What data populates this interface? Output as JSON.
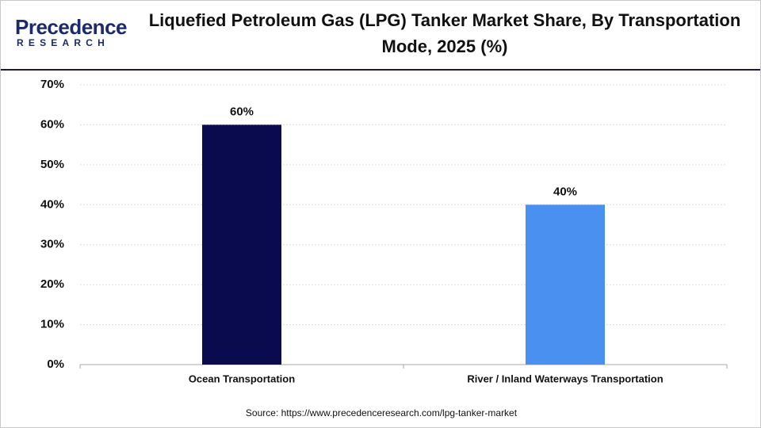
{
  "logo": {
    "name": "Precedence",
    "tagline": "RESEARCH"
  },
  "chart_data": {
    "type": "bar",
    "title": "Liquefied Petroleum Gas (LPG) Tanker Market Share, By Transportation Mode, 2025 (%)",
    "categories": [
      "Ocean Transportation",
      "River / Inland Waterways Transportation"
    ],
    "values": [
      60,
      40
    ],
    "value_labels": [
      "60%",
      "40%"
    ],
    "colors": [
      "#0a0a4f",
      "#4a90f0"
    ],
    "ylim": [
      0,
      70
    ],
    "yticks": [
      {
        "value": 0,
        "label": "0%"
      },
      {
        "value": 10,
        "label": "10%"
      },
      {
        "value": 20,
        "label": "20%"
      },
      {
        "value": 30,
        "label": "30%"
      },
      {
        "value": 40,
        "label": "40%"
      },
      {
        "value": 50,
        "label": "50%"
      },
      {
        "value": 60,
        "label": "60%"
      },
      {
        "value": 70,
        "label": "70%"
      }
    ],
    "grid": true,
    "source": "Source: https://www.precedenceresearch.com/lpg-tanker-market"
  }
}
